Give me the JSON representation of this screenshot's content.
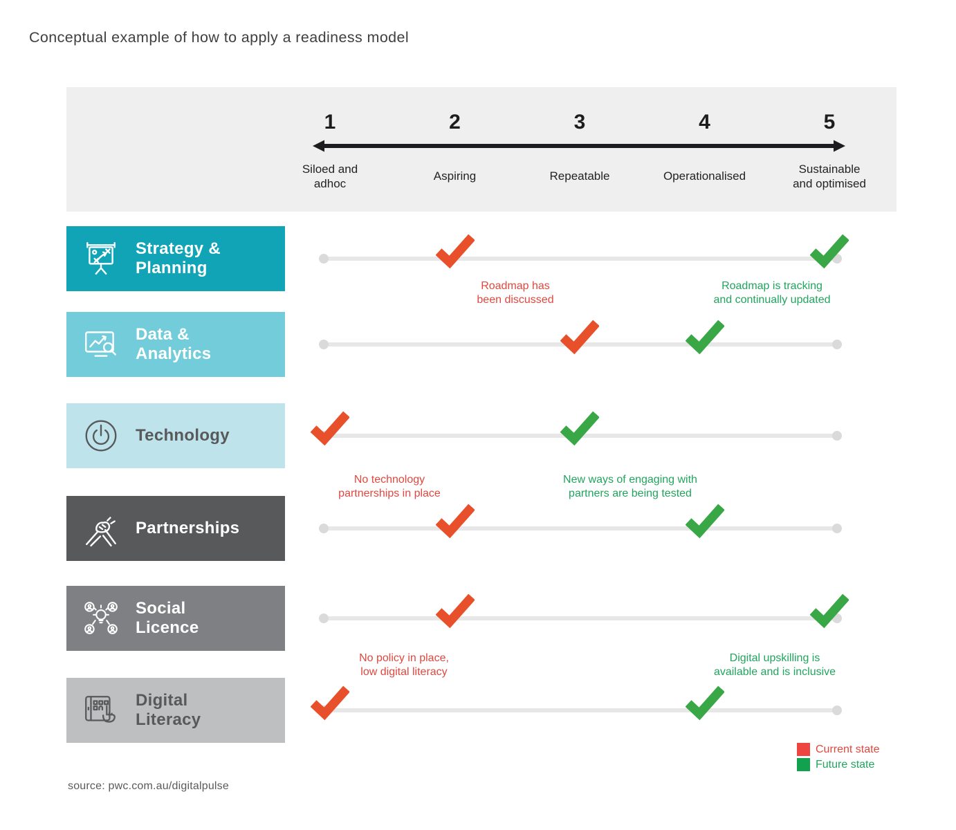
{
  "title": "Conceptual example of how to apply a readiness model",
  "source": "source: pwc.com.au/digitalpulse",
  "scale": {
    "levels": [
      {
        "number": "1",
        "label": "Siloed and\nadhoc"
      },
      {
        "number": "2",
        "label": "Aspiring"
      },
      {
        "number": "3",
        "label": "Repeatable"
      },
      {
        "number": "4",
        "label": "Operationalised"
      },
      {
        "number": "5",
        "label": "Sustainable\nand optimised"
      }
    ]
  },
  "rows": [
    {
      "label": "Strategy &\nPlanning",
      "icon": "strategy-presentation-icon",
      "current_level": 2,
      "future_level": 5,
      "color": "#10a4b6",
      "text_color": "#ffffff"
    },
    {
      "label": "Data &\nAnalytics",
      "icon": "data-analytics-icon",
      "current_level": 3,
      "future_level": 4,
      "color": "#72ccd9",
      "text_color": "#ffffff"
    },
    {
      "label": "Technology",
      "icon": "power-icon",
      "current_level": 1,
      "future_level": 3,
      "color": "#bfe3eb",
      "text_color": "#58595b"
    },
    {
      "label": "Partnerships",
      "icon": "handshake-icon",
      "current_level": 2,
      "future_level": 4,
      "color": "#58595b",
      "text_color": "#ffffff"
    },
    {
      "label": "Social\nLicence",
      "icon": "social-licence-icon",
      "current_level": 2,
      "future_level": 5,
      "color": "#7f8083",
      "text_color": "#ffffff"
    },
    {
      "label": "Digital\nLiteracy",
      "icon": "digital-literacy-icon",
      "current_level": 1,
      "future_level": 4,
      "color": "#bdbfc1",
      "text_color": "#58595b"
    }
  ],
  "annotations": [
    {
      "text": "Roadmap has\nbeen discussed",
      "state": "current"
    },
    {
      "text": "Roadmap is tracking\nand continually updated",
      "state": "future"
    },
    {
      "text": "No technology\npartnerships in place",
      "state": "current"
    },
    {
      "text": "New ways of engaging with\npartners are being tested",
      "state": "future"
    },
    {
      "text": "No policy in place,\nlow digital literacy",
      "state": "current"
    },
    {
      "text": "Digital upskilling is\navailable and is inclusive",
      "state": "future"
    }
  ],
  "legend": [
    {
      "label": "Current state",
      "state": "current",
      "swatch": "#ee4540"
    },
    {
      "label": "Future state",
      "state": "future",
      "swatch": "#12a14f"
    }
  ],
  "colors": {
    "current_check": "#e8502b",
    "future_check": "#3aa747",
    "current_text": "#e0473f",
    "future_text": "#21a45d",
    "header_band": "#efefef",
    "scale_arrow": "#1d1d1f",
    "track": "#e7e7e7"
  }
}
